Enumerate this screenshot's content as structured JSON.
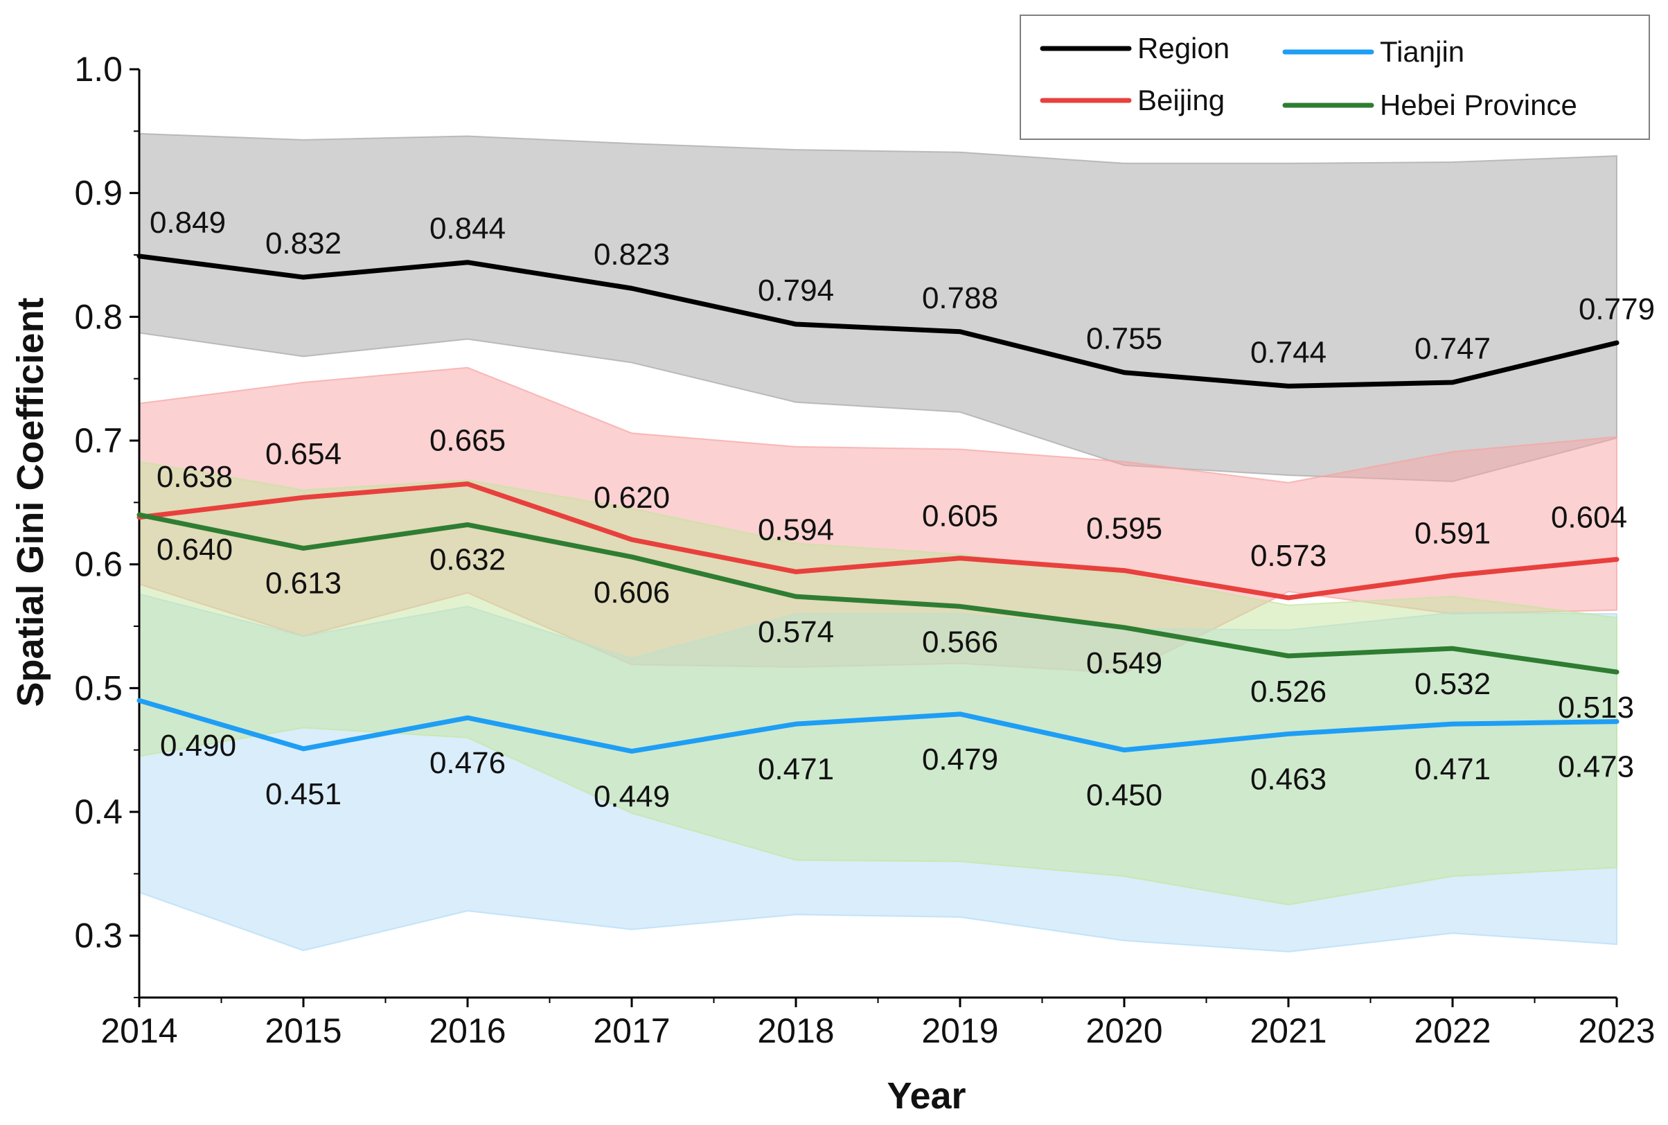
{
  "chart_data": {
    "type": "line",
    "title": "",
    "xlabel": "Year",
    "ylabel": "Spatial Gini Coefficient",
    "ylim": [
      0.25,
      1.0
    ],
    "yticks": [
      "0.3",
      "0.4",
      "0.5",
      "0.6",
      "0.7",
      "0.8",
      "0.9",
      "1.0"
    ],
    "categories": [
      "2014",
      "2015",
      "2016",
      "2017",
      "2018",
      "2019",
      "2020",
      "2021",
      "2022",
      "2023"
    ],
    "legend_position": "top-right",
    "series": [
      {
        "name": "Region",
        "color": "#000000",
        "band_color": "#a6a6a6",
        "values": [
          0.849,
          0.832,
          0.844,
          0.823,
          0.794,
          0.788,
          0.755,
          0.744,
          0.747,
          0.779
        ],
        "labels": [
          "0.849",
          "0.832",
          "0.844",
          "0.823",
          "0.794",
          "0.788",
          "0.755",
          "0.744",
          "0.747",
          "0.779"
        ],
        "upper": [
          0.948,
          0.943,
          0.946,
          0.94,
          0.935,
          0.933,
          0.924,
          0.924,
          0.925,
          0.93
        ],
        "lower": [
          0.787,
          0.768,
          0.782,
          0.763,
          0.731,
          0.723,
          0.68,
          0.672,
          0.667,
          0.702
        ]
      },
      {
        "name": "Beijing",
        "color": "#e8403d",
        "band_color": "#f8a3a3",
        "values": [
          0.638,
          0.654,
          0.665,
          0.62,
          0.594,
          0.605,
          0.595,
          0.573,
          0.591,
          0.604
        ],
        "labels": [
          "0.638",
          "0.654",
          "0.665",
          "0.620",
          "0.594",
          "0.605",
          "0.595",
          "0.573",
          "0.591",
          "0.604"
        ],
        "upper": [
          0.73,
          0.747,
          0.759,
          0.706,
          0.695,
          0.693,
          0.683,
          0.666,
          0.691,
          0.703
        ],
        "lower": [
          0.584,
          0.542,
          0.577,
          0.519,
          0.517,
          0.52,
          0.512,
          0.578,
          0.56,
          0.563
        ]
      },
      {
        "name": "Tianjin",
        "color": "#1e9ef5",
        "band_color": "#b3dcf7",
        "values": [
          0.49,
          0.451,
          0.476,
          0.449,
          0.471,
          0.479,
          0.45,
          0.463,
          0.471,
          0.473
        ],
        "labels": [
          "0.490",
          "0.451",
          "0.476",
          "0.449",
          "0.471",
          "0.479",
          "0.450",
          "0.463",
          "0.471",
          "0.473"
        ],
        "upper": [
          0.576,
          0.542,
          0.566,
          0.524,
          0.56,
          0.56,
          0.548,
          0.547,
          0.561,
          0.56
        ],
        "lower": [
          0.335,
          0.288,
          0.32,
          0.305,
          0.317,
          0.315,
          0.296,
          0.287,
          0.302,
          0.293
        ]
      },
      {
        "name": "Hebei Province",
        "color": "#2e7d32",
        "band_color": "#c5e6a0",
        "values": [
          0.64,
          0.613,
          0.632,
          0.606,
          0.574,
          0.566,
          0.549,
          0.526,
          0.532,
          0.513
        ],
        "labels": [
          "0.640",
          "0.613",
          "0.632",
          "0.606",
          "0.574",
          "0.566",
          "0.549",
          "0.526",
          "0.532",
          "0.513"
        ],
        "upper": [
          0.683,
          0.66,
          0.668,
          0.645,
          0.617,
          0.608,
          0.592,
          0.567,
          0.574,
          0.557
        ],
        "lower": [
          0.445,
          0.468,
          0.46,
          0.399,
          0.361,
          0.36,
          0.348,
          0.325,
          0.348,
          0.355
        ]
      }
    ]
  }
}
